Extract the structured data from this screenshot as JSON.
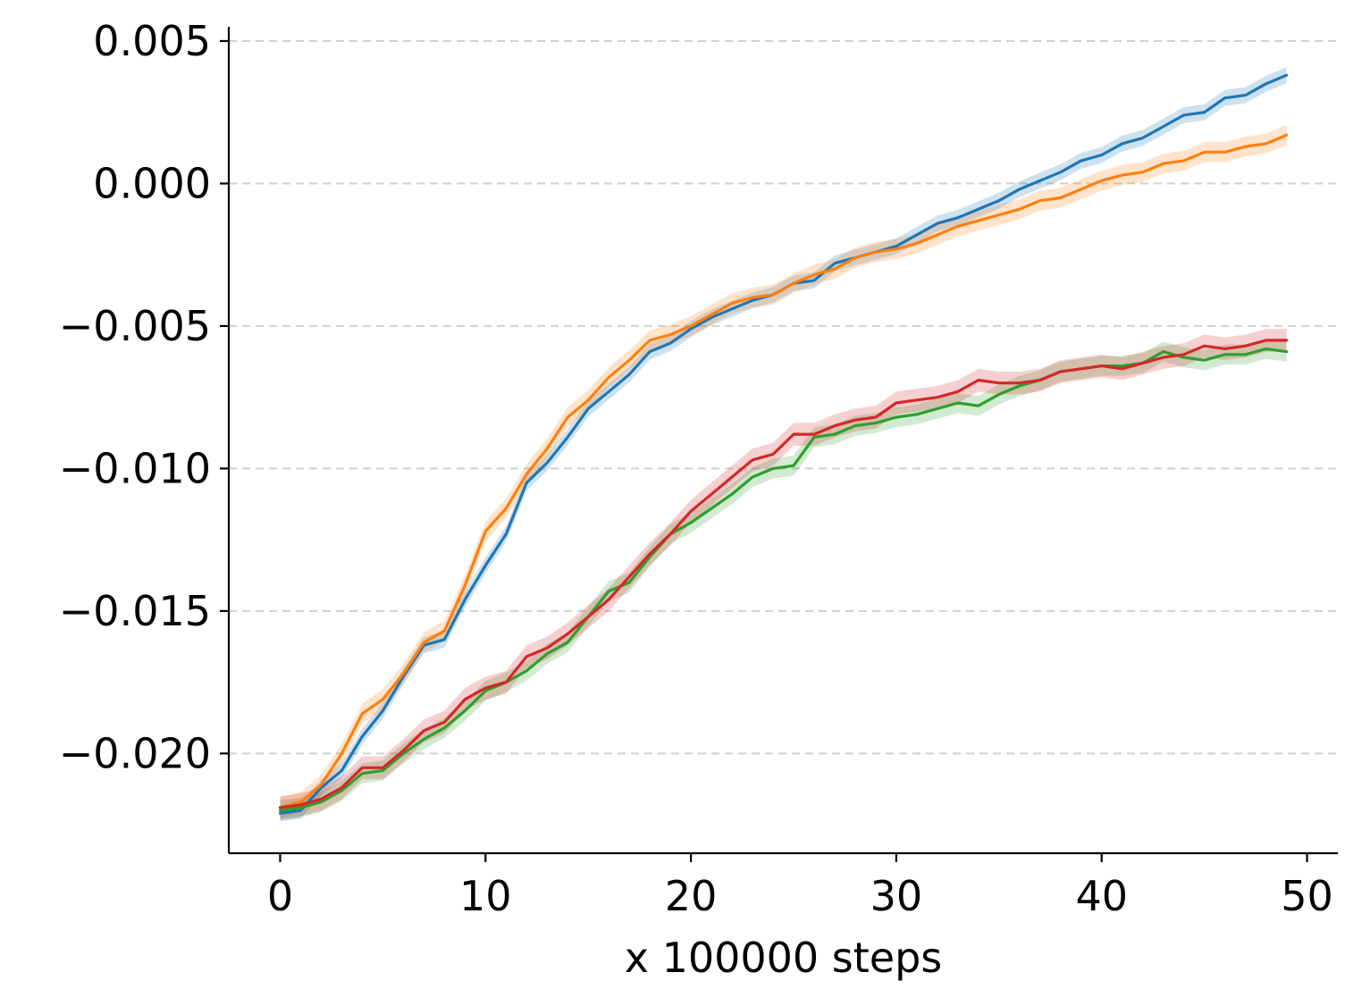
{
  "chart_data": {
    "type": "line",
    "title": "",
    "xlabel": "x 100000 steps",
    "ylabel": "",
    "xlim": [
      -2.5,
      51.5
    ],
    "ylim": [
      -0.0235,
      0.0055
    ],
    "xticks": [
      0,
      10,
      20,
      30,
      40,
      50
    ],
    "yticks": [
      0.005,
      0.0,
      -0.005,
      -0.01,
      -0.015,
      -0.02
    ],
    "xtick_labels": [
      "0",
      "10",
      "20",
      "30",
      "40",
      "50"
    ],
    "ytick_labels": [
      "0.005",
      "0.000",
      "−0.005",
      "−0.010",
      "−0.015",
      "−0.020"
    ],
    "grid": "horizontal-dashed",
    "legend": "none",
    "x": [
      0,
      1,
      2,
      3,
      4,
      5,
      6,
      7,
      8,
      9,
      10,
      11,
      12,
      13,
      14,
      15,
      16,
      17,
      18,
      19,
      20,
      21,
      22,
      23,
      24,
      25,
      26,
      27,
      28,
      29,
      30,
      31,
      32,
      33,
      34,
      35,
      36,
      37,
      38,
      39,
      40,
      41,
      42,
      43,
      44,
      45,
      46,
      47,
      48,
      49
    ],
    "series": [
      {
        "color": "#1f77b4",
        "band": 0.00028,
        "values": [
          -0.0221,
          -0.022,
          -0.0212,
          -0.0206,
          -0.0194,
          -0.0185,
          -0.0173,
          -0.0162,
          -0.016,
          -0.0146,
          -0.0134,
          -0.0123,
          -0.0105,
          -0.0098,
          -0.0089,
          -0.0079,
          -0.0073,
          -0.0067,
          -0.0059,
          -0.0056,
          -0.0051,
          -0.0047,
          -0.0044,
          -0.0041,
          -0.0039,
          -0.0035,
          -0.0034,
          -0.0028,
          -0.0026,
          -0.0024,
          -0.0022,
          -0.0018,
          -0.0014,
          -0.0012,
          -0.0009,
          -0.0006,
          -0.0002,
          0.0001,
          0.0004,
          0.0008,
          0.001,
          0.0014,
          0.0016,
          0.002,
          0.0024,
          0.0025,
          0.003,
          0.0031,
          0.0035,
          0.0038
        ]
      },
      {
        "color": "#ff7f0e",
        "band": 0.00035,
        "values": [
          -0.0219,
          -0.0217,
          -0.0211,
          -0.02,
          -0.0186,
          -0.0181,
          -0.0172,
          -0.0161,
          -0.0157,
          -0.0141,
          -0.0122,
          -0.0114,
          -0.0102,
          -0.0093,
          -0.0082,
          -0.0076,
          -0.0068,
          -0.0062,
          -0.0055,
          -0.0053,
          -0.005,
          -0.0046,
          -0.0042,
          -0.004,
          -0.0039,
          -0.0035,
          -0.0032,
          -0.003,
          -0.0026,
          -0.0024,
          -0.0023,
          -0.0021,
          -0.0018,
          -0.0015,
          -0.0013,
          -0.0011,
          -0.0009,
          -0.0006,
          -0.0005,
          -0.0002,
          0.0001,
          0.0003,
          0.0004,
          0.0007,
          0.0008,
          0.0011,
          0.0011,
          0.0013,
          0.0014,
          0.0017
        ]
      },
      {
        "color": "#2ca02c",
        "band": 0.00035,
        "values": [
          -0.022,
          -0.0219,
          -0.0217,
          -0.0213,
          -0.0207,
          -0.0206,
          -0.02,
          -0.0195,
          -0.0191,
          -0.0185,
          -0.0178,
          -0.0175,
          -0.0171,
          -0.0165,
          -0.0161,
          -0.0152,
          -0.0143,
          -0.014,
          -0.0131,
          -0.0123,
          -0.0119,
          -0.0114,
          -0.0109,
          -0.0103,
          -0.01,
          -0.0099,
          -0.0089,
          -0.0088,
          -0.0085,
          -0.0084,
          -0.0082,
          -0.0081,
          -0.0079,
          -0.0077,
          -0.0078,
          -0.0074,
          -0.0071,
          -0.0069,
          -0.0066,
          -0.0065,
          -0.0064,
          -0.0064,
          -0.0063,
          -0.0059,
          -0.0061,
          -0.0062,
          -0.006,
          -0.006,
          -0.0058,
          -0.0059
        ]
      },
      {
        "color": "#d62728",
        "band": 0.0004,
        "values": [
          -0.0219,
          -0.0218,
          -0.0216,
          -0.0212,
          -0.0205,
          -0.0205,
          -0.0199,
          -0.0192,
          -0.0189,
          -0.0181,
          -0.0177,
          -0.0175,
          -0.0166,
          -0.0163,
          -0.0158,
          -0.0152,
          -0.0146,
          -0.0138,
          -0.013,
          -0.0123,
          -0.0115,
          -0.0109,
          -0.0103,
          -0.0097,
          -0.0095,
          -0.0088,
          -0.0088,
          -0.0085,
          -0.0083,
          -0.0082,
          -0.0077,
          -0.0076,
          -0.0075,
          -0.0073,
          -0.0069,
          -0.007,
          -0.007,
          -0.0069,
          -0.0066,
          -0.0065,
          -0.0064,
          -0.0065,
          -0.0063,
          -0.0061,
          -0.006,
          -0.0057,
          -0.0058,
          -0.0057,
          -0.0055,
          -0.0055
        ]
      }
    ]
  }
}
